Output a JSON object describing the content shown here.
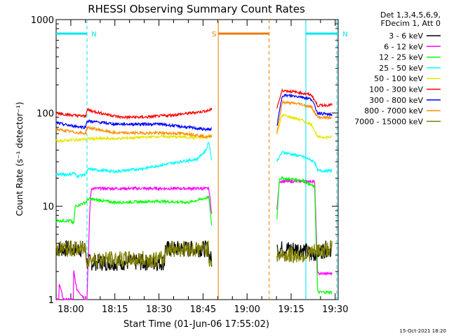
{
  "chart_data": {
    "type": "line",
    "title": "RHESSI Observing Summary Count Rates",
    "xlabel": "Start Time (01-Jun-06 17:55:02)",
    "ylabel": "Count Rate (s⁻¹ detector⁻¹)",
    "yscale": "log",
    "ylim": [
      1,
      1000
    ],
    "xlim_minutes": [
      0,
      96
    ],
    "x_ticks": [
      {
        "m": 5,
        "label": "18:00"
      },
      {
        "m": 20,
        "label": "18:15"
      },
      {
        "m": 35,
        "label": "18:30"
      },
      {
        "m": 50,
        "label": "18:45"
      },
      {
        "m": 65,
        "label": "19:00"
      },
      {
        "m": 80,
        "label": "19:15"
      },
      {
        "m": 95,
        "label": "19:30"
      }
    ],
    "y_ticks": [
      {
        "v": 1,
        "label": "1"
      },
      {
        "v": 10,
        "label": "10"
      },
      {
        "v": 100,
        "label": "100"
      },
      {
        "v": 1000,
        "label": "1000"
      }
    ],
    "legend_header": [
      "Det 1,3,4,5,6,9,",
      "FDecim 1, Att 0"
    ],
    "timestamp": "15-Oct-2021 18:20",
    "flags": [
      {
        "label": "N",
        "color": "#00e5ee",
        "m0": 0,
        "m1": 10.5,
        "dash_at": [
          10.5
        ]
      },
      {
        "label": "N",
        "color": "#00e5ee",
        "m0": 85,
        "m1": 96,
        "dash_at": [
          85,
          95.5
        ]
      },
      {
        "label": "S",
        "color": "#ee7a00",
        "m0": 55.2,
        "m1": 72.5,
        "dash_at": [
          72.5
        ]
      }
    ],
    "series": [
      {
        "name": "3 - 6 keV",
        "color": "#000000",
        "points": [
          [
            0,
            3.5
          ],
          [
            10,
            3.5
          ],
          [
            10.5,
            2.5
          ],
          [
            37,
            2.5
          ],
          [
            37,
            3.5
          ],
          [
            52,
            3.5
          ],
          [
            52,
            3
          ],
          [
            53,
            2.6
          ],
          [
            75,
            2.6
          ],
          [
            75,
            3.5
          ],
          [
            84,
            3.5
          ],
          [
            87,
            3
          ],
          [
            92,
            3.5
          ],
          [
            94,
            3.5
          ]
        ]
      },
      {
        "name": "6 - 12 keV",
        "color": "#ff00ff",
        "points": [
          [
            0,
            1
          ],
          [
            1,
            1
          ],
          [
            1,
            1.5
          ],
          [
            2.5,
            1
          ],
          [
            6,
            1
          ],
          [
            6,
            2
          ],
          [
            7,
            1.3
          ],
          [
            10,
            1
          ],
          [
            10.5,
            1
          ],
          [
            11.5,
            10
          ],
          [
            12,
            15.5
          ],
          [
            52,
            15.5
          ],
          [
            53,
            8
          ],
          [
            75,
            8
          ],
          [
            76,
            18.5
          ],
          [
            88,
            18.5
          ],
          [
            89,
            1.9
          ],
          [
            94,
            1.9
          ]
        ]
      },
      {
        "name": "12 - 25 keV",
        "color": "#00ff00",
        "points": [
          [
            0,
            7
          ],
          [
            5,
            7
          ],
          [
            6,
            6.5
          ],
          [
            6.5,
            10
          ],
          [
            10,
            11
          ],
          [
            11,
            12
          ],
          [
            20,
            11
          ],
          [
            35,
            11.3
          ],
          [
            45,
            11
          ],
          [
            52,
            12.5
          ],
          [
            53,
            6
          ],
          [
            75,
            6
          ],
          [
            76,
            20
          ],
          [
            84,
            19
          ],
          [
            88,
            16
          ],
          [
            89,
            1.2
          ],
          [
            94,
            1.2
          ]
        ]
      },
      {
        "name": "25 - 50 keV",
        "color": "#00ffff",
        "points": [
          [
            0,
            22
          ],
          [
            5,
            22
          ],
          [
            6,
            23
          ],
          [
            7,
            21
          ],
          [
            10,
            22
          ],
          [
            11,
            25
          ],
          [
            20,
            23.5
          ],
          [
            30,
            25.5
          ],
          [
            42,
            30
          ],
          [
            48,
            32
          ],
          [
            51,
            40
          ],
          [
            52,
            50
          ],
          [
            53,
            30
          ],
          [
            75,
            30
          ],
          [
            77,
            38
          ],
          [
            84,
            34
          ],
          [
            88,
            30
          ],
          [
            89,
            24
          ],
          [
            94,
            24
          ]
        ]
      },
      {
        "name": "50 - 100 keV",
        "color": "#e6e600",
        "points": [
          [
            0,
            50
          ],
          [
            9,
            52
          ],
          [
            11,
            53
          ],
          [
            20,
            53
          ],
          [
            35,
            56
          ],
          [
            45,
            55
          ],
          [
            51,
            54
          ],
          [
            52,
            58
          ],
          [
            53,
            58
          ],
          [
            75,
            58
          ],
          [
            77,
            95
          ],
          [
            83,
            85
          ],
          [
            87,
            75
          ],
          [
            89,
            55
          ],
          [
            94,
            55
          ]
        ]
      },
      {
        "name": "100 - 300 keV",
        "color": "#ff0000",
        "points": [
          [
            0,
            100
          ],
          [
            5,
            95
          ],
          [
            10,
            92
          ],
          [
            10.5,
            108
          ],
          [
            15,
            100
          ],
          [
            22,
            90
          ],
          [
            30,
            90
          ],
          [
            38,
            94
          ],
          [
            44,
            98
          ],
          [
            52,
            106
          ],
          [
            53,
            110
          ],
          [
            75,
            110
          ],
          [
            77,
            175
          ],
          [
            83,
            165
          ],
          [
            87,
            155
          ],
          [
            89,
            120
          ],
          [
            94,
            122
          ]
        ]
      },
      {
        "name": "300 - 800 keV",
        "color": "#0000ff",
        "points": [
          [
            0,
            78
          ],
          [
            5,
            73
          ],
          [
            10,
            70
          ],
          [
            10.5,
            82
          ],
          [
            20,
            76
          ],
          [
            35,
            76
          ],
          [
            45,
            70
          ],
          [
            52,
            66
          ],
          [
            53,
            68
          ],
          [
            75,
            68
          ],
          [
            77,
            155
          ],
          [
            83,
            150
          ],
          [
            87,
            140
          ],
          [
            89,
            100
          ],
          [
            94,
            95
          ]
        ]
      },
      {
        "name": "800 - 7000 keV",
        "color": "#ff8c00",
        "points": [
          [
            0,
            67
          ],
          [
            5,
            63
          ],
          [
            10,
            60
          ],
          [
            10.5,
            70
          ],
          [
            20,
            61
          ],
          [
            35,
            61
          ],
          [
            45,
            60
          ],
          [
            52,
            55
          ],
          [
            53,
            58
          ],
          [
            75,
            58
          ],
          [
            77,
            130
          ],
          [
            83,
            125
          ],
          [
            87,
            115
          ],
          [
            89,
            90
          ],
          [
            94,
            88
          ]
        ]
      },
      {
        "name": "7000 - 15000 keV",
        "color": "#808000",
        "points": [
          [
            0,
            3.5
          ],
          [
            10,
            3.5
          ],
          [
            10.5,
            2.7
          ],
          [
            37,
            2.7
          ],
          [
            37,
            3.5
          ],
          [
            52,
            3.5
          ],
          [
            52,
            2.8
          ],
          [
            53,
            2.6
          ],
          [
            75,
            2.6
          ],
          [
            75,
            3
          ],
          [
            84,
            3
          ],
          [
            89,
            3.3
          ],
          [
            92,
            3.4
          ],
          [
            94,
            3.6
          ]
        ]
      }
    ],
    "gaps": [
      [
        53,
        75
      ]
    ]
  }
}
